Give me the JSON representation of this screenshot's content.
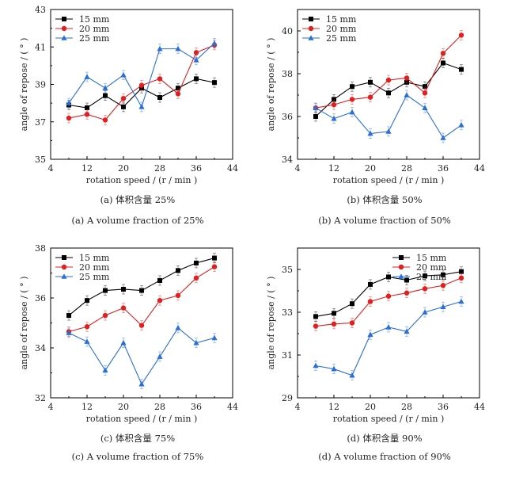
{
  "chart_data": [
    {
      "type": "line",
      "caption_cn": "(a) 体积含量 25%",
      "caption_en": "(a) A volume fraction of 25%",
      "xlabel": "rotation speed / (r / min )",
      "ylabel": "angle of repose / ( ° )",
      "xlim": [
        4,
        44
      ],
      "ylim": [
        35,
        43
      ],
      "xticks": [
        4,
        12,
        20,
        28,
        36,
        44
      ],
      "yticks": [
        35,
        37,
        39,
        41,
        43
      ],
      "grid": false,
      "legend": "top-left",
      "x": [
        8,
        12,
        16,
        20,
        24,
        28,
        32,
        36,
        40
      ],
      "series": [
        {
          "name": "15 mm",
          "color": "#000000",
          "marker": "square",
          "values": [
            37.9,
            37.75,
            38.4,
            37.8,
            38.8,
            38.3,
            38.8,
            39.3,
            39.1
          ]
        },
        {
          "name": "20 mm",
          "color": "#e02020",
          "marker": "circle",
          "values": [
            37.2,
            37.4,
            37.1,
            38.25,
            38.95,
            39.3,
            38.5,
            40.7,
            41.1
          ]
        },
        {
          "name": "25 mm",
          "color": "#2a6fd6",
          "marker": "triangle",
          "values": [
            38.0,
            39.4,
            38.8,
            39.5,
            37.8,
            40.9,
            40.9,
            40.3,
            41.2
          ]
        }
      ]
    },
    {
      "type": "line",
      "caption_cn": "(b) 体积含量 50%",
      "caption_en": "(b) A volume fraction of 50%",
      "xlabel": "rotation speed / (r / min )",
      "ylabel": "angle of repose / ( ° )",
      "xlim": [
        4,
        44
      ],
      "ylim": [
        34,
        41
      ],
      "xticks": [
        4,
        12,
        20,
        28,
        36,
        44
      ],
      "yticks": [
        34,
        36,
        38,
        40
      ],
      "grid": false,
      "legend": "top-left",
      "x": [
        8,
        12,
        16,
        20,
        24,
        28,
        32,
        36,
        40
      ],
      "series": [
        {
          "name": "15 mm",
          "color": "#000000",
          "marker": "square",
          "values": [
            36.0,
            36.8,
            37.4,
            37.6,
            37.1,
            37.6,
            37.4,
            38.5,
            38.2
          ]
        },
        {
          "name": "20 mm",
          "color": "#e02020",
          "marker": "circle",
          "values": [
            36.4,
            36.55,
            36.8,
            36.9,
            37.7,
            37.8,
            37.1,
            38.95,
            39.8
          ]
        },
        {
          "name": "25 mm",
          "color": "#2a6fd6",
          "marker": "triangle",
          "values": [
            36.4,
            35.9,
            36.2,
            35.2,
            35.3,
            37.0,
            36.4,
            35.0,
            35.6
          ]
        }
      ]
    },
    {
      "type": "line",
      "caption_cn": "(c) 体积含量 75%",
      "caption_en": "(c) A volume fraction of 75%",
      "xlabel": "rotation speed / (r / min )",
      "ylabel": "angle of repose / ( ° )",
      "xlim": [
        4,
        44
      ],
      "ylim": [
        32,
        38
      ],
      "xticks": [
        4,
        12,
        20,
        28,
        36,
        44
      ],
      "yticks": [
        32,
        34,
        36,
        38
      ],
      "grid": false,
      "legend": "top-left",
      "x": [
        8,
        12,
        16,
        20,
        24,
        28,
        32,
        36,
        40
      ],
      "series": [
        {
          "name": "15 mm",
          "color": "#000000",
          "marker": "square",
          "values": [
            35.3,
            35.9,
            36.3,
            36.35,
            36.3,
            36.7,
            37.1,
            37.4,
            37.6
          ]
        },
        {
          "name": "20 mm",
          "color": "#e02020",
          "marker": "circle",
          "values": [
            34.65,
            34.85,
            35.3,
            35.6,
            34.9,
            35.9,
            36.1,
            36.8,
            37.25
          ]
        },
        {
          "name": "25 mm",
          "color": "#2a6fd6",
          "marker": "triangle",
          "values": [
            34.6,
            34.25,
            33.1,
            34.2,
            32.55,
            33.65,
            34.8,
            34.2,
            34.4
          ]
        }
      ]
    },
    {
      "type": "line",
      "caption_cn": "(d) 体积含量 90%",
      "caption_en": "(d) A volume fraction of 90%",
      "xlabel": "rotation speed / (r / min )",
      "ylabel": "angle of repose / ( ° )",
      "xlim": [
        4,
        44
      ],
      "ylim": [
        29,
        36
      ],
      "xticks": [
        4,
        12,
        20,
        28,
        36,
        44
      ],
      "yticks": [
        29,
        31,
        33,
        35
      ],
      "grid": false,
      "legend": "top-right",
      "x": [
        8,
        12,
        16,
        20,
        24,
        28,
        32,
        36,
        40
      ],
      "series": [
        {
          "name": "15 mm",
          "color": "#000000",
          "marker": "square",
          "values": [
            32.8,
            32.95,
            33.4,
            34.3,
            34.65,
            34.5,
            34.7,
            34.75,
            34.9
          ]
        },
        {
          "name": "20 mm",
          "color": "#e02020",
          "marker": "circle",
          "values": [
            32.35,
            32.45,
            32.5,
            33.5,
            33.75,
            33.9,
            34.1,
            34.25,
            34.6
          ]
        },
        {
          "name": "25 mm",
          "color": "#2a6fd6",
          "marker": "triangle",
          "values": [
            30.5,
            30.35,
            30.05,
            31.95,
            32.3,
            32.1,
            33.0,
            33.25,
            33.5
          ]
        }
      ]
    }
  ]
}
